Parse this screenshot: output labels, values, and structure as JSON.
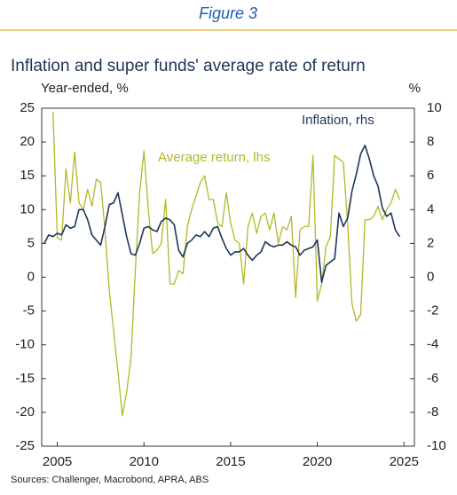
{
  "header": {
    "figure": "Figure 3"
  },
  "chart_data": {
    "type": "line",
    "title": "Inflation and super funds' average rate of return",
    "y_label": "Year-ended, %",
    "y2_label": "%",
    "source": "Sources: Challenger, Macrobond, APRA, ABS",
    "x": [
      2004.25,
      2004.5,
      2004.75,
      2005,
      2005.25,
      2005.5,
      2005.75,
      2006,
      2006.25,
      2006.5,
      2006.75,
      2007,
      2007.25,
      2007.5,
      2007.75,
      2008,
      2008.25,
      2008.5,
      2008.75,
      2009,
      2009.25,
      2009.5,
      2009.75,
      2010,
      2010.25,
      2010.5,
      2010.75,
      2011,
      2011.25,
      2011.5,
      2011.75,
      2012,
      2012.25,
      2012.5,
      2012.75,
      2013,
      2013.25,
      2013.5,
      2013.75,
      2014,
      2014.25,
      2014.5,
      2014.75,
      2015,
      2015.25,
      2015.5,
      2015.75,
      2016,
      2016.25,
      2016.5,
      2016.75,
      2017,
      2017.25,
      2017.5,
      2017.75,
      2018,
      2018.25,
      2018.5,
      2018.75,
      2019,
      2019.25,
      2019.5,
      2019.75,
      2020,
      2020.25,
      2020.5,
      2020.75,
      2021,
      2021.25,
      2021.5,
      2021.75,
      2022,
      2022.25,
      2022.5,
      2022.75,
      2023,
      2023.25,
      2023.5,
      2023.75,
      2024,
      2024.25,
      2024.5,
      2024.75
    ],
    "xlim": [
      2004.1,
      2025.6
    ],
    "xticks": [
      2005,
      2010,
      2015,
      2020,
      2025
    ],
    "ylim": [
      -25,
      25
    ],
    "yticks": [
      -25,
      -20,
      -15,
      -10,
      -5,
      0,
      5,
      10,
      15,
      20,
      25
    ],
    "y2lim": [
      -10,
      10
    ],
    "y2ticks": [
      -10,
      -8,
      -6,
      -4,
      -2,
      0,
      2,
      4,
      6,
      8,
      10
    ],
    "series": [
      {
        "name": "Average return, lhs",
        "color": "#b3b826",
        "values": [
          null,
          null,
          24.5,
          5.8,
          5.5,
          16.0,
          11.0,
          18.5,
          11.0,
          10.0,
          13.0,
          10.5,
          14.5,
          14.0,
          7.0,
          -2.0,
          -8.0,
          -14.0,
          -20.5,
          -17.0,
          -12.0,
          1.0,
          12.5,
          18.7,
          10.0,
          3.5,
          4.0,
          5.0,
          11.5,
          -1.0,
          -1.0,
          1.0,
          0.5,
          7.5,
          10.0,
          12.0,
          14.0,
          15.0,
          11.5,
          11.5,
          8.0,
          7.5,
          12.5,
          8.0,
          5.5,
          5.0,
          -1.0,
          7.5,
          9.5,
          6.5,
          9.0,
          9.5,
          7.0,
          9.5,
          5.0,
          7.5,
          7.0,
          9.0,
          -3.0,
          7.0,
          7.5,
          7.5,
          18.0,
          -3.5,
          -1.0,
          4.5,
          6.0,
          18.0,
          17.5,
          17.0,
          8.0,
          -4.0,
          -6.5,
          -5.5,
          8.5,
          8.5,
          9.0,
          10.5,
          8.5,
          10.0,
          11.0,
          13.0,
          11.5
        ]
      },
      {
        "name": "Inflation, rhs",
        "color": "#1d3557",
        "axis": "y2",
        "values": [
          2.0,
          2.5,
          2.4,
          2.6,
          2.5,
          3.1,
          2.9,
          3.0,
          4.0,
          4.0,
          3.4,
          2.5,
          2.2,
          1.9,
          3.0,
          4.3,
          4.4,
          5.0,
          3.7,
          2.4,
          1.4,
          1.3,
          2.0,
          2.9,
          3.0,
          2.8,
          2.7,
          3.3,
          3.5,
          3.4,
          3.1,
          1.6,
          1.2,
          2.0,
          2.2,
          2.5,
          2.4,
          2.7,
          2.4,
          2.9,
          3.0,
          2.3,
          1.7,
          1.3,
          1.5,
          1.5,
          1.7,
          1.3,
          1.0,
          1.3,
          1.5,
          2.1,
          1.9,
          1.8,
          1.9,
          1.9,
          2.1,
          1.9,
          1.8,
          1.3,
          1.6,
          1.7,
          1.8,
          2.2,
          -0.3,
          0.7,
          0.9,
          1.1,
          3.8,
          3.0,
          3.5,
          5.1,
          6.1,
          7.3,
          7.8,
          7.0,
          6.0,
          5.4,
          4.1,
          3.6,
          3.8,
          2.8,
          2.4
        ]
      }
    ]
  }
}
